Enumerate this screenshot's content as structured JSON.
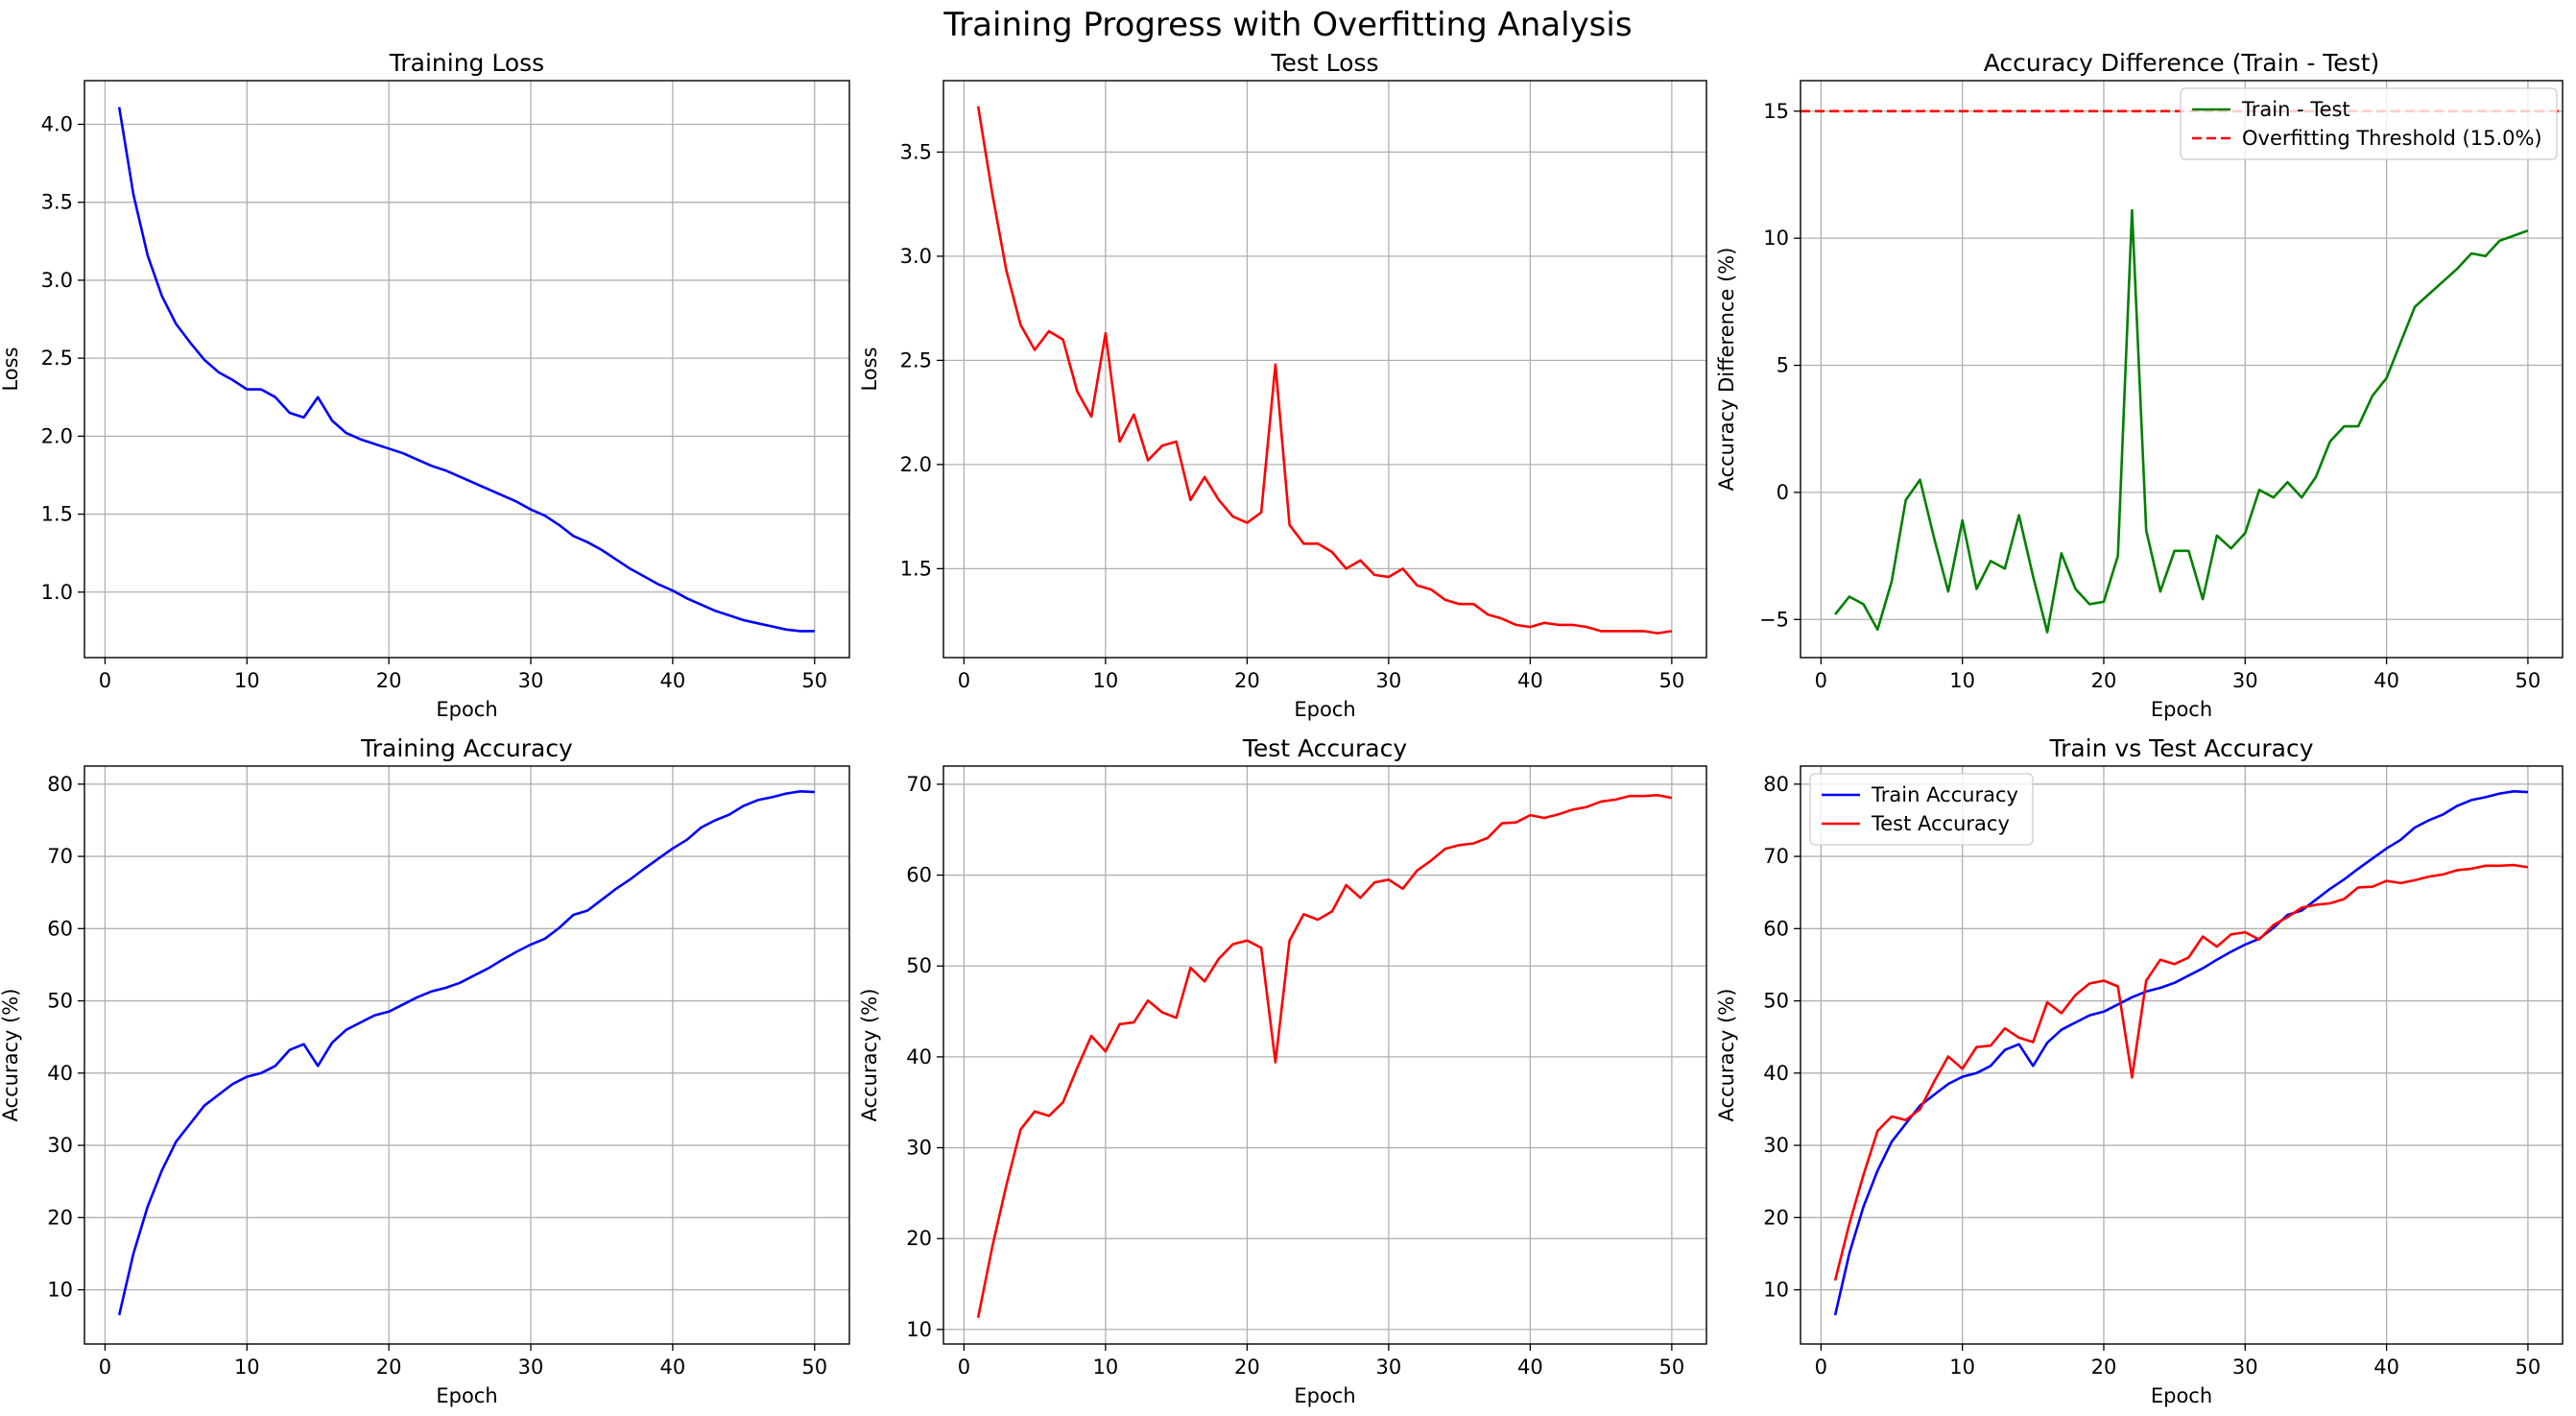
{
  "figure": {
    "title": "Training Progress with Overfitting Analysis"
  },
  "colors": {
    "blue": "#0000ff",
    "red": "#ff0000",
    "green": "#008000",
    "grid": "#b0b0b0"
  },
  "chart_data": [
    {
      "type": "line",
      "title": "Training Loss",
      "xlabel": "Epoch",
      "ylabel": "Loss",
      "xlim": [
        -1.45,
        52.45
      ],
      "ylim": [
        0.58,
        4.28
      ],
      "xticks": [
        0,
        10,
        20,
        30,
        40,
        50
      ],
      "yticks": [
        1.0,
        1.5,
        2.0,
        2.5,
        3.0,
        3.5,
        4.0
      ],
      "ytick_labels": [
        "1.0",
        "1.5",
        "2.0",
        "2.5",
        "3.0",
        "3.5",
        "4.0"
      ],
      "grid": true,
      "x": [
        1,
        2,
        3,
        4,
        5,
        6,
        7,
        8,
        9,
        10,
        11,
        12,
        13,
        14,
        15,
        16,
        17,
        18,
        19,
        20,
        21,
        22,
        23,
        24,
        25,
        26,
        27,
        28,
        29,
        30,
        31,
        32,
        33,
        34,
        35,
        36,
        37,
        38,
        39,
        40,
        41,
        42,
        43,
        44,
        45,
        46,
        47,
        48,
        49,
        50
      ],
      "series": [
        {
          "color": "blue",
          "values": [
            4.11,
            3.55,
            3.16,
            2.9,
            2.72,
            2.6,
            2.49,
            2.41,
            2.36,
            2.3,
            2.3,
            2.25,
            2.15,
            2.12,
            2.25,
            2.1,
            2.02,
            1.98,
            1.95,
            1.92,
            1.89,
            1.85,
            1.81,
            1.78,
            1.74,
            1.7,
            1.66,
            1.62,
            1.58,
            1.53,
            1.49,
            1.43,
            1.36,
            1.32,
            1.27,
            1.21,
            1.15,
            1.1,
            1.05,
            1.01,
            0.96,
            0.92,
            0.88,
            0.85,
            0.82,
            0.8,
            0.78,
            0.76,
            0.75,
            0.75
          ]
        }
      ]
    },
    {
      "type": "line",
      "title": "Test Loss",
      "xlabel": "Epoch",
      "ylabel": "Loss",
      "xlim": [
        -1.45,
        52.45
      ],
      "ylim": [
        1.073,
        3.843
      ],
      "xticks": [
        0,
        10,
        20,
        30,
        40,
        50
      ],
      "yticks": [
        1.5,
        2.0,
        2.5,
        3.0,
        3.5
      ],
      "ytick_labels": [
        "1.5",
        "2.0",
        "2.5",
        "3.0",
        "3.5"
      ],
      "grid": true,
      "x": [
        1,
        2,
        3,
        4,
        5,
        6,
        7,
        8,
        9,
        10,
        11,
        12,
        13,
        14,
        15,
        16,
        17,
        18,
        19,
        20,
        21,
        22,
        23,
        24,
        25,
        26,
        27,
        28,
        29,
        30,
        31,
        32,
        33,
        34,
        35,
        36,
        37,
        38,
        39,
        40,
        41,
        42,
        43,
        44,
        45,
        46,
        47,
        48,
        49,
        50
      ],
      "series": [
        {
          "color": "red",
          "values": [
            3.72,
            3.3,
            2.93,
            2.67,
            2.55,
            2.64,
            2.6,
            2.35,
            2.23,
            2.63,
            2.11,
            2.24,
            2.02,
            2.09,
            2.11,
            1.83,
            1.94,
            1.83,
            1.75,
            1.72,
            1.77,
            2.48,
            1.71,
            1.62,
            1.62,
            1.58,
            1.5,
            1.54,
            1.47,
            1.46,
            1.5,
            1.42,
            1.4,
            1.35,
            1.33,
            1.33,
            1.28,
            1.26,
            1.23,
            1.22,
            1.24,
            1.23,
            1.23,
            1.22,
            1.2,
            1.2,
            1.2,
            1.2,
            1.19,
            1.2
          ]
        }
      ]
    },
    {
      "type": "line",
      "title": "Accuracy Difference (Train - Test)",
      "xlabel": "Epoch",
      "ylabel": "Accuracy Difference (%)",
      "xlim": [
        -1.45,
        52.45
      ],
      "ylim": [
        -6.5,
        16.2
      ],
      "xticks": [
        0,
        10,
        20,
        30,
        40,
        50
      ],
      "yticks": [
        -5,
        0,
        5,
        10,
        15
      ],
      "ytick_labels": [
        "−5",
        "0",
        "5",
        "10",
        "15"
      ],
      "grid": true,
      "legend": "upper right",
      "x": [
        1,
        2,
        3,
        4,
        5,
        6,
        7,
        8,
        9,
        10,
        11,
        12,
        13,
        14,
        15,
        16,
        17,
        18,
        19,
        20,
        21,
        22,
        23,
        24,
        25,
        26,
        27,
        28,
        29,
        30,
        31,
        32,
        33,
        34,
        35,
        36,
        37,
        38,
        39,
        40,
        41,
        42,
        43,
        44,
        45,
        46,
        47,
        48,
        49,
        50
      ],
      "series": [
        {
          "name": "Train - Test",
          "color": "green",
          "values": [
            -4.8,
            -4.1,
            -4.4,
            -5.4,
            -3.5,
            -0.3,
            0.5,
            -1.8,
            -3.9,
            -1.1,
            -3.8,
            -2.7,
            -3.0,
            -0.9,
            -3.3,
            -5.5,
            -2.4,
            -3.8,
            -4.4,
            -4.3,
            -2.5,
            11.1,
            -1.5,
            -3.9,
            -2.3,
            -2.3,
            -4.2,
            -1.7,
            -2.2,
            -1.6,
            0.1,
            -0.2,
            0.4,
            -0.2,
            0.6,
            2.0,
            2.6,
            2.6,
            3.8,
            4.5,
            5.9,
            7.3,
            7.8,
            8.3,
            8.8,
            9.4,
            9.3,
            9.9,
            10.1,
            10.3
          ]
        },
        {
          "name": "Overfitting Threshold (15.0%)",
          "color": "red",
          "dashed": true,
          "hline": 15
        }
      ]
    },
    {
      "type": "line",
      "title": "Training Accuracy",
      "xlabel": "Epoch",
      "ylabel": "Accuracy (%)",
      "xlim": [
        -1.45,
        52.45
      ],
      "ylim": [
        2.5,
        82.5
      ],
      "xticks": [
        0,
        10,
        20,
        30,
        40,
        50
      ],
      "yticks": [
        10,
        20,
        30,
        40,
        50,
        60,
        70,
        80
      ],
      "ytick_labels": [
        "10",
        "20",
        "30",
        "40",
        "50",
        "60",
        "70",
        "80"
      ],
      "grid": true,
      "x": [
        1,
        2,
        3,
        4,
        5,
        6,
        7,
        8,
        9,
        10,
        11,
        12,
        13,
        14,
        15,
        16,
        17,
        18,
        19,
        20,
        21,
        22,
        23,
        24,
        25,
        26,
        27,
        28,
        29,
        30,
        31,
        32,
        33,
        34,
        35,
        36,
        37,
        38,
        39,
        40,
        41,
        42,
        43,
        44,
        45,
        46,
        47,
        48,
        49,
        50
      ],
      "series": [
        {
          "color": "blue",
          "values": [
            6.5,
            15.0,
            21.5,
            26.5,
            30.5,
            33.0,
            35.5,
            37.0,
            38.5,
            39.5,
            40.0,
            41.0,
            43.2,
            44.0,
            41.0,
            44.2,
            46.0,
            47.0,
            48.0,
            48.5,
            49.5,
            50.5,
            51.3,
            51.8,
            52.5,
            53.5,
            54.5,
            55.7,
            56.8,
            57.8,
            58.6,
            60.1,
            61.9,
            62.5,
            64.0,
            65.5,
            66.8,
            68.3,
            69.7,
            71.1,
            72.3,
            74.0,
            75.0,
            75.8,
            77.0,
            77.8,
            78.2,
            78.7,
            79.0,
            78.9
          ]
        }
      ]
    },
    {
      "type": "line",
      "title": "Test Accuracy",
      "xlabel": "Epoch",
      "ylabel": "Accuracy (%)",
      "xlim": [
        -1.45,
        52.45
      ],
      "ylim": [
        8.4,
        72.0
      ],
      "xticks": [
        0,
        10,
        20,
        30,
        40,
        50
      ],
      "yticks": [
        10,
        20,
        30,
        40,
        50,
        60,
        70
      ],
      "ytick_labels": [
        "10",
        "20",
        "30",
        "40",
        "50",
        "60",
        "70"
      ],
      "grid": true,
      "x": [
        1,
        2,
        3,
        4,
        5,
        6,
        7,
        8,
        9,
        10,
        11,
        12,
        13,
        14,
        15,
        16,
        17,
        18,
        19,
        20,
        21,
        22,
        23,
        24,
        25,
        26,
        27,
        28,
        29,
        30,
        31,
        32,
        33,
        34,
        35,
        36,
        37,
        38,
        39,
        40,
        41,
        42,
        43,
        44,
        45,
        46,
        47,
        48,
        49,
        50
      ],
      "series": [
        {
          "color": "red",
          "values": [
            11.3,
            19.1,
            25.9,
            32.0,
            34.0,
            33.5,
            35.0,
            38.8,
            42.3,
            40.6,
            43.6,
            43.8,
            46.2,
            44.9,
            44.3,
            49.8,
            48.3,
            50.8,
            52.4,
            52.8,
            52.0,
            39.4,
            52.8,
            55.7,
            55.1,
            56.0,
            58.9,
            57.5,
            59.2,
            59.5,
            58.5,
            60.5,
            61.6,
            62.9,
            63.3,
            63.5,
            64.1,
            65.7,
            65.8,
            66.6,
            66.3,
            66.7,
            67.2,
            67.5,
            68.1,
            68.3,
            68.7,
            68.7,
            68.8,
            68.5
          ]
        }
      ]
    },
    {
      "type": "line",
      "title": "Train vs Test Accuracy",
      "xlabel": "Epoch",
      "ylabel": "Accuracy (%)",
      "xlim": [
        -1.45,
        52.45
      ],
      "ylim": [
        2.5,
        82.5
      ],
      "xticks": [
        0,
        10,
        20,
        30,
        40,
        50
      ],
      "yticks": [
        10,
        20,
        30,
        40,
        50,
        60,
        70,
        80
      ],
      "ytick_labels": [
        "10",
        "20",
        "30",
        "40",
        "50",
        "60",
        "70",
        "80"
      ],
      "grid": true,
      "legend": "upper left",
      "x": [
        1,
        2,
        3,
        4,
        5,
        6,
        7,
        8,
        9,
        10,
        11,
        12,
        13,
        14,
        15,
        16,
        17,
        18,
        19,
        20,
        21,
        22,
        23,
        24,
        25,
        26,
        27,
        28,
        29,
        30,
        31,
        32,
        33,
        34,
        35,
        36,
        37,
        38,
        39,
        40,
        41,
        42,
        43,
        44,
        45,
        46,
        47,
        48,
        49,
        50
      ],
      "series": [
        {
          "name": "Train Accuracy",
          "color": "blue",
          "values": [
            6.5,
            15.0,
            21.5,
            26.5,
            30.5,
            33.0,
            35.5,
            37.0,
            38.5,
            39.5,
            40.0,
            41.0,
            43.2,
            44.0,
            41.0,
            44.2,
            46.0,
            47.0,
            48.0,
            48.5,
            49.5,
            50.5,
            51.3,
            51.8,
            52.5,
            53.5,
            54.5,
            55.7,
            56.8,
            57.8,
            58.6,
            60.1,
            61.9,
            62.5,
            64.0,
            65.5,
            66.8,
            68.3,
            69.7,
            71.1,
            72.3,
            74.0,
            75.0,
            75.8,
            77.0,
            77.8,
            78.2,
            78.7,
            79.0,
            78.9
          ]
        },
        {
          "name": "Test Accuracy",
          "color": "red",
          "values": [
            11.3,
            19.1,
            25.9,
            32.0,
            34.0,
            33.5,
            35.0,
            38.8,
            42.3,
            40.6,
            43.6,
            43.8,
            46.2,
            44.9,
            44.3,
            49.8,
            48.3,
            50.8,
            52.4,
            52.8,
            52.0,
            39.4,
            52.8,
            55.7,
            55.1,
            56.0,
            58.9,
            57.5,
            59.2,
            59.5,
            58.5,
            60.5,
            61.6,
            62.9,
            63.3,
            63.5,
            64.1,
            65.7,
            65.8,
            66.6,
            66.3,
            66.7,
            67.2,
            67.5,
            68.1,
            68.3,
            68.7,
            68.7,
            68.8,
            68.5
          ]
        }
      ]
    }
  ]
}
